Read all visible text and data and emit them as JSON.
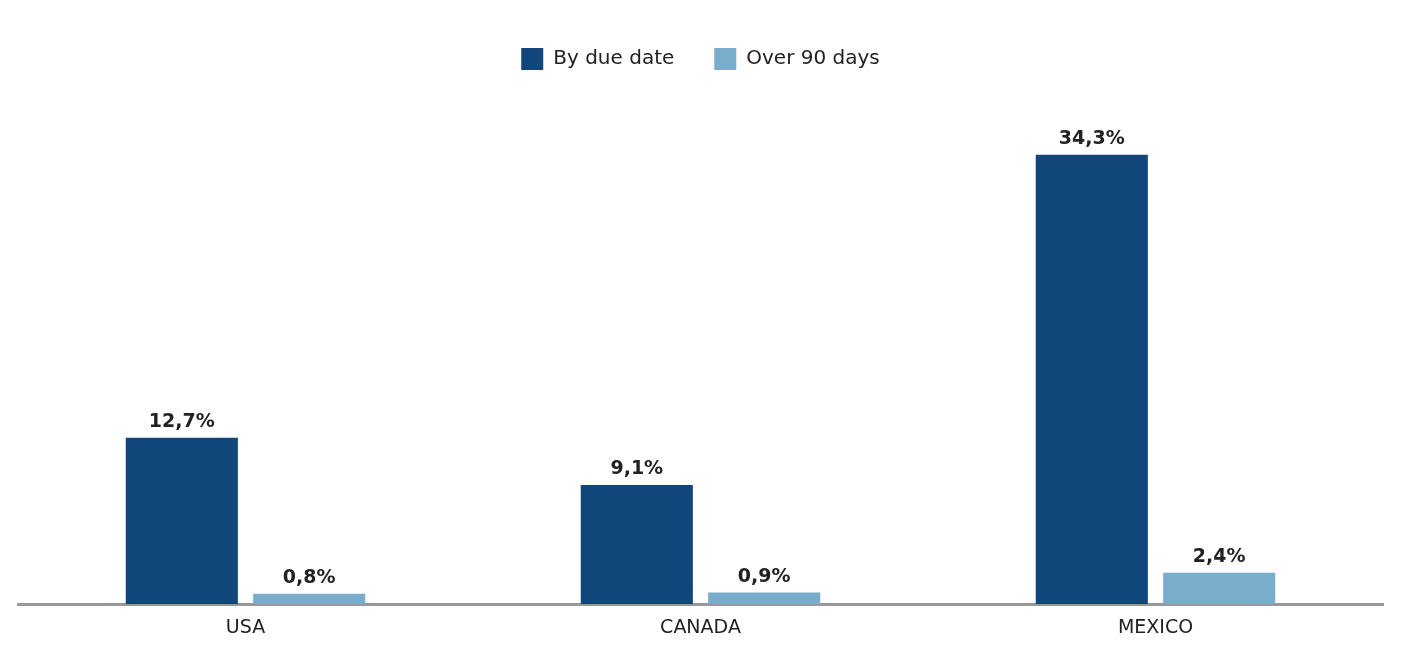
{
  "chart_data": {
    "type": "bar",
    "categories": [
      "USA",
      "CANADA",
      "MEXICO"
    ],
    "series": [
      {
        "name": "By due date",
        "color": "#10467a",
        "values": [
          12.7,
          9.1,
          34.3
        ],
        "value_labels": [
          "12,7%",
          "9,1%",
          "34,3%"
        ]
      },
      {
        "name": "Over 90 days",
        "color": "#7aaccc",
        "values": [
          0.8,
          0.9,
          2.4
        ],
        "value_labels": [
          "0,8%",
          "0,9%",
          "2,4%"
        ]
      }
    ],
    "legend": "top",
    "grid": false
  }
}
